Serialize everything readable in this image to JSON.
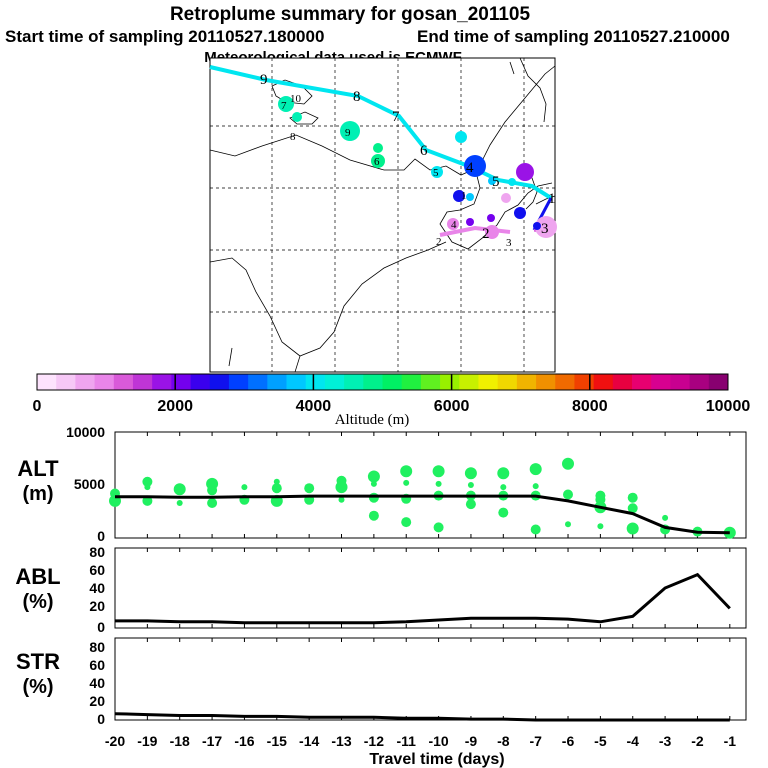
{
  "header": {
    "title": "Retroplume summary for gosan_201105",
    "start_text": "Start time of sampling 20110527.180000",
    "end_text": "End time of sampling 20110527.210000",
    "met_text": "Meteorological data used is ECMWF"
  },
  "colorbar": {
    "label": "Altitude (m)",
    "ticks": [
      "0",
      "2000",
      "4000",
      "6000",
      "8000",
      "10000"
    ],
    "colors": [
      "#fde3fd",
      "#f6c8f6",
      "#efa5ef",
      "#e985e9",
      "#d95ad9",
      "#bf35d6",
      "#9a13e6",
      "#7400ee",
      "#3a00ee",
      "#1010ee",
      "#0040ff",
      "#0070ff",
      "#00a0ff",
      "#00c8ff",
      "#00e6f0",
      "#00f0d8",
      "#00f0b4",
      "#00f08c",
      "#00f064",
      "#20f040",
      "#60f020",
      "#98f000",
      "#c8f000",
      "#f0f000",
      "#f0d800",
      "#f0b400",
      "#f09000",
      "#f06a00",
      "#f04000",
      "#f01010",
      "#e80040",
      "#e80070",
      "#d80090",
      "#c80090",
      "#a80080",
      "#880070"
    ]
  },
  "map": {
    "trajectory_labels": [
      {
        "t": "1"
      },
      {
        "t": "2"
      },
      {
        "t": "3"
      },
      {
        "t": "4"
      },
      {
        "t": "5"
      },
      {
        "t": "6"
      },
      {
        "t": "7"
      },
      {
        "t": "8"
      },
      {
        "t": "9"
      }
    ],
    "cluster_labels": [
      {
        "t": "10"
      },
      {
        "t": "9"
      },
      {
        "t": "8"
      },
      {
        "t": "7"
      },
      {
        "t": "6"
      },
      {
        "t": "5"
      },
      {
        "t": "4"
      },
      {
        "t": "3"
      },
      {
        "t": "2"
      },
      {
        "t": "1"
      }
    ]
  },
  "panels": {
    "alt": {
      "label_top": "ALT",
      "label_bottom": "(m)",
      "yticks": [
        "10000",
        "5000",
        "0"
      ]
    },
    "abl": {
      "label_top": "ABL",
      "label_bottom": "(%)",
      "yticks": [
        "80",
        "60",
        "40",
        "20",
        "0"
      ]
    },
    "str": {
      "label_top": "STR",
      "label_bottom": "(%)",
      "yticks": [
        "80",
        "60",
        "40",
        "20",
        "0"
      ]
    }
  },
  "xaxis": {
    "ticks": [
      "-20",
      "-19",
      "-18",
      "-17",
      "-16",
      "-15",
      "-14",
      "-13",
      "-12",
      "-11",
      "-10",
      "-9",
      "-8",
      "-7",
      "-6",
      "-5",
      "-4",
      "-3",
      "-2",
      "-1"
    ],
    "label": "Travel time (days)"
  },
  "chart_data": {
    "type": "line",
    "x": [
      -20,
      -19,
      -18,
      -17,
      -16,
      -15,
      -14,
      -13,
      -12,
      -11,
      -10,
      -9,
      -8,
      -7,
      -6,
      -5,
      -4,
      -3,
      -2,
      -1
    ],
    "xlim": [
      -20,
      -0.5
    ],
    "xlabel": "Travel time (days)",
    "series": [
      {
        "name": "ALT (m)",
        "ylim": [
          0,
          10000
        ],
        "values": [
          3900,
          3900,
          3850,
          3850,
          3900,
          3900,
          3950,
          3950,
          3950,
          3950,
          3950,
          3950,
          3950,
          3950,
          3500,
          2900,
          2300,
          1000,
          550,
          500
        ],
        "cluster_points": [
          {
            "x": -20,
            "y": 4200
          },
          {
            "x": -20,
            "y": 3500
          },
          {
            "x": -19,
            "y": 4800
          },
          {
            "x": -19,
            "y": 3500
          },
          {
            "x": -19,
            "y": 5300
          },
          {
            "x": -18,
            "y": 4600
          },
          {
            "x": -18,
            "y": 3300
          },
          {
            "x": -17,
            "y": 4500
          },
          {
            "x": -17,
            "y": 3300
          },
          {
            "x": -17,
            "y": 5100
          },
          {
            "x": -16,
            "y": 4800
          },
          {
            "x": -16,
            "y": 3600
          },
          {
            "x": -15,
            "y": 4700
          },
          {
            "x": -15,
            "y": 3500
          },
          {
            "x": -15,
            "y": 5300
          },
          {
            "x": -14,
            "y": 4700
          },
          {
            "x": -14,
            "y": 3600
          },
          {
            "x": -13,
            "y": 4800
          },
          {
            "x": -13,
            "y": 3600
          },
          {
            "x": -13,
            "y": 5400
          },
          {
            "x": -12,
            "y": 3800
          },
          {
            "x": -12,
            "y": 5800
          },
          {
            "x": -12,
            "y": 5100
          },
          {
            "x": -12,
            "y": 2100
          },
          {
            "x": -11,
            "y": 3700
          },
          {
            "x": -11,
            "y": 6300
          },
          {
            "x": -11,
            "y": 5200
          },
          {
            "x": -11,
            "y": 1500
          },
          {
            "x": -10,
            "y": 4000
          },
          {
            "x": -10,
            "y": 6300
          },
          {
            "x": -10,
            "y": 5100
          },
          {
            "x": -10,
            "y": 1000
          },
          {
            "x": -9,
            "y": 4000
          },
          {
            "x": -9,
            "y": 6100
          },
          {
            "x": -9,
            "y": 5000
          },
          {
            "x": -9,
            "y": 3200
          },
          {
            "x": -8,
            "y": 4000
          },
          {
            "x": -8,
            "y": 6100
          },
          {
            "x": -8,
            "y": 4800
          },
          {
            "x": -8,
            "y": 2400
          },
          {
            "x": -7,
            "y": 4000
          },
          {
            "x": -7,
            "y": 6500
          },
          {
            "x": -7,
            "y": 4900
          },
          {
            "x": -7,
            "y": 800
          },
          {
            "x": -6,
            "y": 4100
          },
          {
            "x": -6,
            "y": 7000
          },
          {
            "x": -6,
            "y": 1300
          },
          {
            "x": -5,
            "y": 4000
          },
          {
            "x": -5,
            "y": 3600
          },
          {
            "x": -5,
            "y": 2900
          },
          {
            "x": -5,
            "y": 1100
          },
          {
            "x": -4,
            "y": 3800
          },
          {
            "x": -4,
            "y": 2800
          },
          {
            "x": -4,
            "y": 900
          },
          {
            "x": -3,
            "y": 1900
          },
          {
            "x": -3,
            "y": 800
          },
          {
            "x": -2,
            "y": 600
          },
          {
            "x": -1,
            "y": 500
          }
        ]
      },
      {
        "name": "ABL (%)",
        "ylim": [
          0,
          90
        ],
        "values": [
          8,
          8,
          7,
          7,
          6,
          6,
          6,
          6,
          6,
          7,
          9,
          11,
          11,
          11,
          10,
          7,
          13,
          45,
          60,
          22
        ]
      },
      {
        "name": "STR (%)",
        "ylim": [
          0,
          90
        ],
        "values": [
          7,
          6,
          5,
          5,
          4,
          4,
          3,
          3,
          3,
          2,
          2,
          1,
          1,
          0,
          0,
          0,
          0,
          0,
          0,
          0
        ]
      }
    ]
  }
}
